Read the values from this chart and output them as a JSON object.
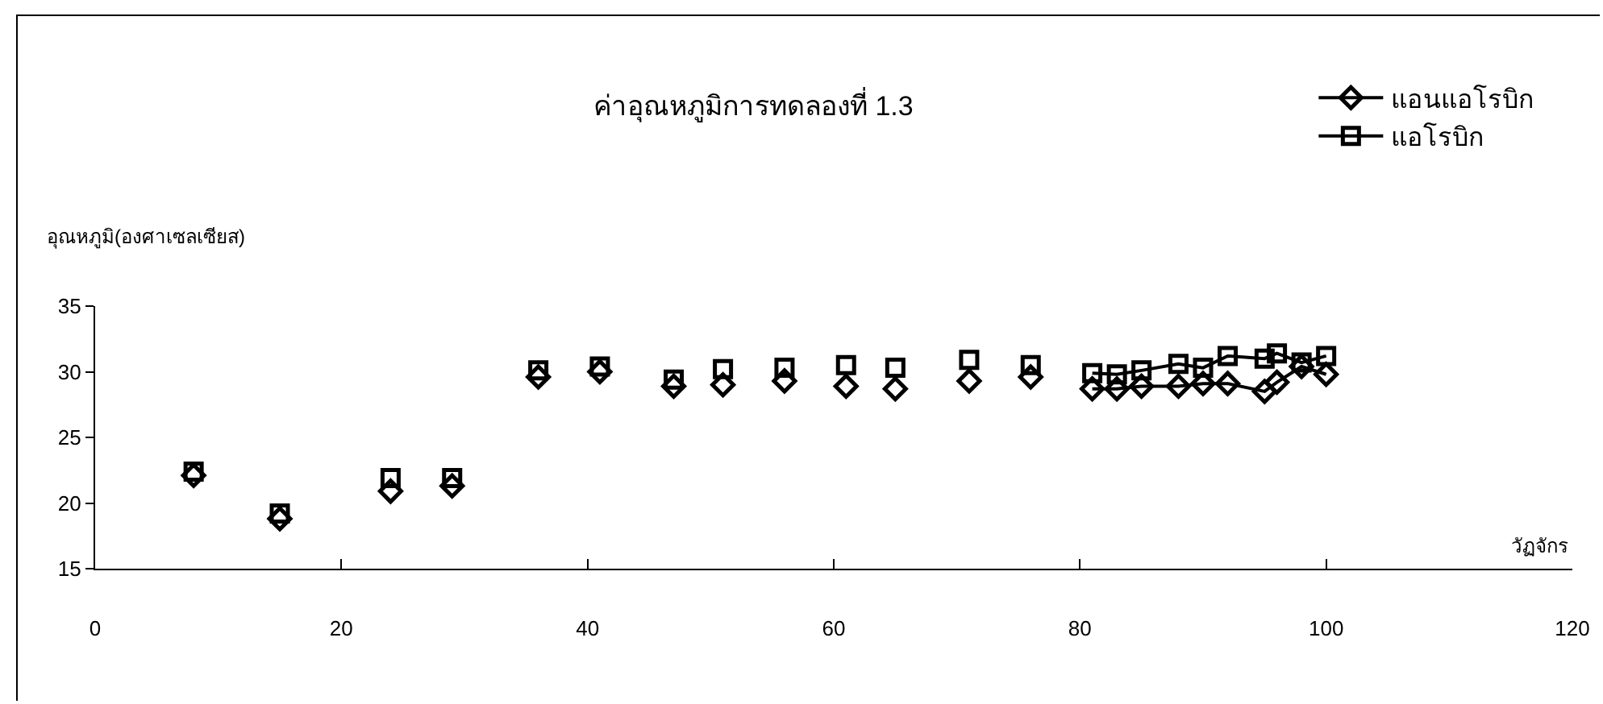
{
  "chart_data": {
    "type": "line",
    "title": "ค่าอุณหภูมิการทดลองที่ 1.3",
    "xlabel": "วัฏจักร",
    "ylabel": "อุณหภูมิ(องศาเซลเซียส)",
    "x": [
      8,
      11,
      15,
      20,
      24,
      26,
      29,
      33,
      36,
      39,
      41,
      44,
      47,
      49,
      51,
      54,
      56,
      59,
      61,
      63,
      65,
      68,
      71,
      74,
      76,
      79,
      81,
      83,
      85,
      88,
      90,
      92,
      95,
      96,
      98,
      100
    ],
    "series": [
      {
        "name": "แอนแอโรบิก",
        "color": "#000000",
        "marker": "diamond",
        "values": [
          22.1,
          null,
          18.8,
          null,
          20.9,
          null,
          21.3,
          null,
          29.6,
          null,
          30.0,
          null,
          28.9,
          null,
          29.0,
          null,
          29.3,
          null,
          28.9,
          null,
          28.7,
          null,
          29.3,
          null,
          29.6,
          null,
          28.7,
          28.7,
          28.9,
          28.9,
          29.1,
          29.1,
          28.5,
          29.2,
          30.4,
          29.8
        ]
      },
      {
        "name": "แอโรบิก",
        "color": "#000000",
        "marker": "square",
        "values": [
          22.4,
          null,
          19.2,
          null,
          21.9,
          null,
          21.9,
          null,
          30.1,
          null,
          30.4,
          null,
          29.4,
          null,
          30.2,
          null,
          30.3,
          null,
          30.5,
          null,
          30.3,
          null,
          30.9,
          null,
          30.5,
          null,
          29.9,
          29.8,
          30.1,
          30.6,
          30.3,
          31.2,
          31.0,
          31.4,
          30.7,
          31.2
        ]
      }
    ],
    "xlim": [
      0,
      120
    ],
    "xticks": [
      0,
      20,
      40,
      60,
      80,
      100,
      120
    ],
    "ylim": [
      15,
      35
    ],
    "yticks": [
      15,
      20,
      25,
      30,
      35
    ],
    "grid": false,
    "legend": "top right",
    "line_style": "solid"
  }
}
